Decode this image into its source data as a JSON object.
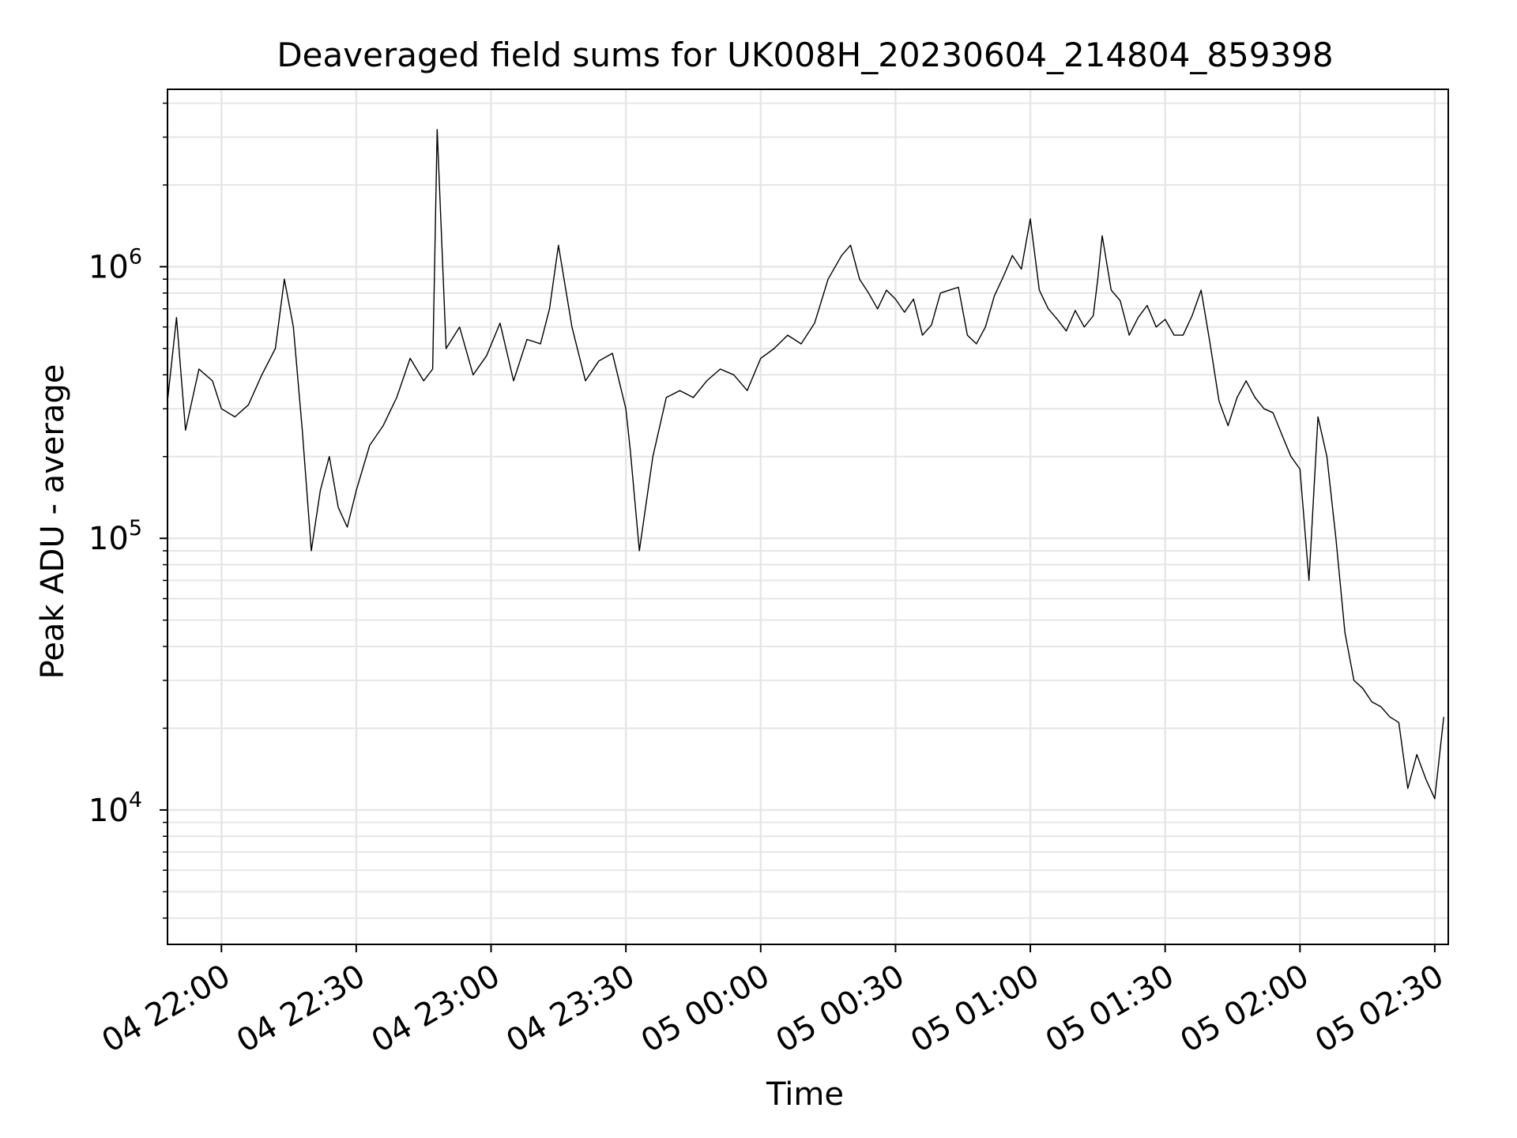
{
  "chart_data": {
    "type": "line",
    "title": "Deaveraged field sums for UK008H_20230604_214804_859398",
    "xlabel": "Time",
    "ylabel": "Peak ADU - average",
    "yscale": "log",
    "ylim": [
      3200,
      4500000
    ],
    "xlim": [
      "2023-06-04 21:48:00",
      "2023-06-05 02:33:00"
    ],
    "grid": true,
    "line_color": "#000000",
    "grid_color": "#e6e6e6",
    "x_ticks": [
      {
        "label": "04 22:00",
        "value": "2023-06-04 22:00"
      },
      {
        "label": "04 22:30",
        "value": "2023-06-04 22:30"
      },
      {
        "label": "04 23:00",
        "value": "2023-06-04 23:00"
      },
      {
        "label": "04 23:30",
        "value": "2023-06-04 23:30"
      },
      {
        "label": "05 00:00",
        "value": "2023-06-05 00:00"
      },
      {
        "label": "05 00:30",
        "value": "2023-06-05 00:30"
      },
      {
        "label": "05 01:00",
        "value": "2023-06-05 01:00"
      },
      {
        "label": "05 01:30",
        "value": "2023-06-05 01:30"
      },
      {
        "label": "05 02:00",
        "value": "2023-06-05 02:00"
      },
      {
        "label": "05 02:30",
        "value": "2023-06-05 02:30"
      }
    ],
    "y_ticks": [
      {
        "base": "10",
        "exp": "4",
        "value": 10000
      },
      {
        "base": "10",
        "exp": "5",
        "value": 100000
      },
      {
        "base": "10",
        "exp": "6",
        "value": 1000000
      }
    ],
    "series": [
      {
        "x": [
          "2023-06-04 21:48",
          "2023-06-04 21:50",
          "2023-06-04 21:52",
          "2023-06-04 21:55",
          "2023-06-04 21:58",
          "2023-06-04 22:00",
          "2023-06-04 22:03",
          "2023-06-04 22:06",
          "2023-06-04 22:09",
          "2023-06-04 22:12",
          "2023-06-04 22:14",
          "2023-06-04 22:16",
          "2023-06-04 22:18",
          "2023-06-04 22:20",
          "2023-06-04 22:22",
          "2023-06-04 22:24",
          "2023-06-04 22:26",
          "2023-06-04 22:28",
          "2023-06-04 22:30",
          "2023-06-04 22:33",
          "2023-06-04 22:36",
          "2023-06-04 22:39",
          "2023-06-04 22:42",
          "2023-06-04 22:45",
          "2023-06-04 22:47",
          "2023-06-04 22:48",
          "2023-06-04 22:50",
          "2023-06-04 22:53",
          "2023-06-04 22:56",
          "2023-06-04 22:59",
          "2023-06-04 23:02",
          "2023-06-04 23:05",
          "2023-06-04 23:08",
          "2023-06-04 23:11",
          "2023-06-04 23:13",
          "2023-06-04 23:15",
          "2023-06-04 23:18",
          "2023-06-04 23:21",
          "2023-06-04 23:24",
          "2023-06-04 23:27",
          "2023-06-04 23:30",
          "2023-06-04 23:31",
          "2023-06-04 23:33",
          "2023-06-04 23:36",
          "2023-06-04 23:39",
          "2023-06-04 23:42",
          "2023-06-04 23:45",
          "2023-06-04 23:48",
          "2023-06-04 23:51",
          "2023-06-04 23:54",
          "2023-06-04 23:57",
          "2023-06-05 00:00",
          "2023-06-05 00:03",
          "2023-06-05 00:06",
          "2023-06-05 00:09",
          "2023-06-05 00:12",
          "2023-06-05 00:15",
          "2023-06-05 00:18",
          "2023-06-05 00:20",
          "2023-06-05 00:22",
          "2023-06-05 00:24",
          "2023-06-05 00:26",
          "2023-06-05 00:28",
          "2023-06-05 00:30",
          "2023-06-05 00:32",
          "2023-06-05 00:34",
          "2023-06-05 00:36",
          "2023-06-05 00:38",
          "2023-06-05 00:40",
          "2023-06-05 00:42",
          "2023-06-05 00:44",
          "2023-06-05 00:46",
          "2023-06-05 00:48",
          "2023-06-05 00:50",
          "2023-06-05 00:52",
          "2023-06-05 00:54",
          "2023-06-05 00:56",
          "2023-06-05 00:58",
          "2023-06-05 01:00",
          "2023-06-05 01:02",
          "2023-06-05 01:04",
          "2023-06-05 01:06",
          "2023-06-05 01:08",
          "2023-06-05 01:10",
          "2023-06-05 01:12",
          "2023-06-05 01:14",
          "2023-06-05 01:15",
          "2023-06-05 01:16",
          "2023-06-05 01:18",
          "2023-06-05 01:20",
          "2023-06-05 01:22",
          "2023-06-05 01:24",
          "2023-06-05 01:26",
          "2023-06-05 01:28",
          "2023-06-05 01:30",
          "2023-06-05 01:32",
          "2023-06-05 01:34",
          "2023-06-05 01:36",
          "2023-06-05 01:38",
          "2023-06-05 01:40",
          "2023-06-05 01:42",
          "2023-06-05 01:44",
          "2023-06-05 01:46",
          "2023-06-05 01:48",
          "2023-06-05 01:50",
          "2023-06-05 01:52",
          "2023-06-05 01:54",
          "2023-06-05 01:56",
          "2023-06-05 01:58",
          "2023-06-05 02:00",
          "2023-06-05 02:02",
          "2023-06-05 02:04",
          "2023-06-05 02:06",
          "2023-06-05 02:08",
          "2023-06-05 02:10",
          "2023-06-05 02:12",
          "2023-06-05 02:14",
          "2023-06-05 02:16",
          "2023-06-05 02:18",
          "2023-06-05 02:20",
          "2023-06-05 02:22",
          "2023-06-05 02:24",
          "2023-06-05 02:26",
          "2023-06-05 02:28",
          "2023-06-05 02:30",
          "2023-06-05 02:32"
        ],
        "y": [
          320000,
          650000,
          250000,
          420000,
          380000,
          300000,
          280000,
          310000,
          400000,
          500000,
          900000,
          600000,
          250000,
          90000,
          150000,
          200000,
          130000,
          110000,
          150000,
          220000,
          260000,
          330000,
          460000,
          380000,
          420000,
          3200000,
          500000,
          600000,
          400000,
          470000,
          620000,
          380000,
          540000,
          520000,
          700000,
          1200000,
          600000,
          380000,
          450000,
          480000,
          300000,
          210000,
          90000,
          200000,
          330000,
          350000,
          330000,
          380000,
          420000,
          400000,
          350000,
          460000,
          500000,
          560000,
          520000,
          620000,
          900000,
          1100000,
          1200000,
          900000,
          800000,
          700000,
          820000,
          760000,
          680000,
          760000,
          560000,
          610000,
          800000,
          820000,
          840000,
          560000,
          520000,
          600000,
          780000,
          920000,
          1100000,
          980000,
          1500000,
          820000,
          700000,
          640000,
          580000,
          690000,
          600000,
          660000,
          900000,
          1300000,
          820000,
          750000,
          560000,
          650000,
          720000,
          600000,
          640000,
          560000,
          560000,
          660000,
          820000,
          520000,
          320000,
          260000,
          330000,
          380000,
          330000,
          300000,
          290000,
          240000,
          200000,
          180000,
          70000,
          280000,
          200000,
          100000,
          45000,
          30000,
          28000,
          25000,
          24000,
          22000,
          21000,
          12000,
          16000,
          13000,
          11000,
          22000
        ]
      }
    ]
  }
}
